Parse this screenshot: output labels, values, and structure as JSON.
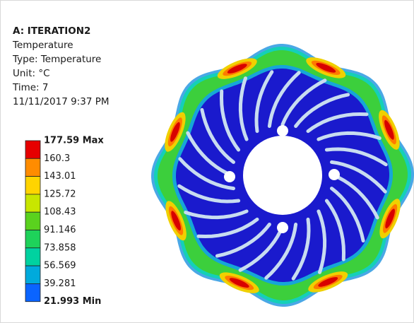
{
  "header": {
    "title": "A: ITERATION2",
    "lines": [
      "Temperature",
      "Type: Temperature",
      "Unit: °C",
      "Time: 7",
      "11/11/2017 9:37 PM"
    ]
  },
  "legend": {
    "labels": [
      "177.59 Max",
      "160.3",
      "143.01",
      "125.72",
      "108.43",
      "91.146",
      "73.858",
      "56.569",
      "39.281",
      "21.993 Min"
    ],
    "colors": [
      "#e60000",
      "#ff8c00",
      "#ffd400",
      "#c8e600",
      "#5ad21e",
      "#1ed25a",
      "#00d2a0",
      "#00aadc",
      "#0a64ff",
      "#0000c8"
    ]
  }
}
